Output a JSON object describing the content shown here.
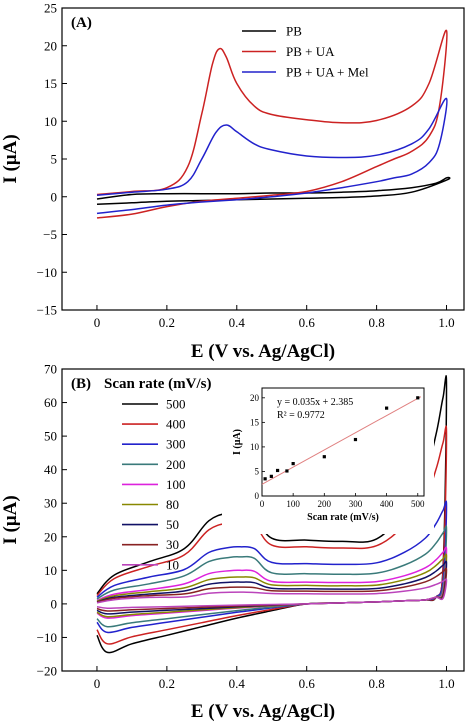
{
  "chart_data": [
    {
      "type": "line",
      "panel_label": "(A)",
      "xlabel": "E (V vs. Ag/AgCl)",
      "ylabel": "I (μA)",
      "xlim": [
        -0.1,
        1.05
      ],
      "ylim": [
        -15,
        25
      ],
      "xticks": [
        "0",
        "0.2",
        "0.4",
        "0.6",
        "0.8",
        "1.0"
      ],
      "xtick_values": [
        0,
        0.2,
        0.4,
        0.6,
        0.8,
        1.0
      ],
      "yticks": [
        "25",
        "20",
        "15",
        "10",
        "5",
        "0",
        "−5",
        "−10",
        "−15"
      ],
      "ytick_values": [
        25,
        20,
        15,
        10,
        5,
        0,
        -5,
        -10,
        -15
      ],
      "legend_position": "top-right",
      "series": [
        {
          "name": "PB",
          "color": "#000000",
          "x": [
            0,
            0.1,
            0.2,
            0.3,
            0.4,
            0.5,
            0.6,
            0.7,
            0.8,
            0.9,
            0.97,
            1.0,
            1.0,
            0.9,
            0.8,
            0.7,
            0.6,
            0.5,
            0.4,
            0.3,
            0.2,
            0.1,
            0
          ],
          "y": [
            -0.3,
            0.3,
            0.4,
            0.4,
            0.4,
            0.5,
            0.5,
            0.6,
            0.8,
            1.2,
            1.8,
            2.5,
            2.2,
            0.6,
            0.1,
            -0.1,
            -0.2,
            -0.3,
            -0.4,
            -0.5,
            -0.6,
            -0.8,
            -1.0
          ]
        },
        {
          "name": "PB + UA",
          "color": "#cc2222",
          "x": [
            0,
            0.1,
            0.2,
            0.26,
            0.3,
            0.33,
            0.35,
            0.37,
            0.4,
            0.45,
            0.5,
            0.6,
            0.7,
            0.8,
            0.9,
            0.95,
            1.0,
            0.98,
            0.95,
            0.9,
            0.85,
            0.8,
            0.7,
            0.6,
            0.5,
            0.4,
            0.3,
            0.2,
            0.1,
            0
          ],
          "y": [
            0.3,
            0.7,
            1.2,
            4,
            11,
            17.5,
            19.6,
            18.5,
            15,
            12,
            10.9,
            10.2,
            9.8,
            10.1,
            12,
            15,
            22,
            12,
            8,
            6,
            5,
            4,
            2,
            0.7,
            0.2,
            -0.2,
            -0.6,
            -1.3,
            -2.3,
            -2.8
          ]
        },
        {
          "name": "PB + UA + Mel",
          "color": "#2222cc",
          "x": [
            0,
            0.1,
            0.2,
            0.26,
            0.3,
            0.34,
            0.37,
            0.4,
            0.45,
            0.5,
            0.6,
            0.7,
            0.8,
            0.9,
            0.95,
            1.0,
            0.98,
            0.95,
            0.9,
            0.85,
            0.8,
            0.7,
            0.6,
            0.5,
            0.4,
            0.3,
            0.2,
            0.1,
            0
          ],
          "y": [
            0.2,
            0.6,
            1.0,
            2,
            5,
            8.5,
            9.5,
            8.6,
            7,
            6.2,
            5.4,
            5.2,
            5.5,
            7,
            9,
            13,
            7,
            4.5,
            3,
            2.5,
            2,
            1.2,
            0.5,
            0,
            -0.4,
            -0.7,
            -1.1,
            -1.7,
            -2.2
          ]
        }
      ]
    },
    {
      "type": "line",
      "panel_label": "(B)",
      "legend_title": "Scan rate (mV/s)",
      "xlabel": "E (V vs. Ag/AgCl)",
      "ylabel": "I (μA)",
      "xlim": [
        -0.1,
        1.05
      ],
      "ylim": [
        -20,
        70
      ],
      "xticks": [
        "0",
        "0.2",
        "0.4",
        "0.6",
        "0.8",
        "1.0"
      ],
      "xtick_values": [
        0,
        0.2,
        0.4,
        0.6,
        0.8,
        1.0
      ],
      "yticks": [
        "70",
        "60",
        "50",
        "40",
        "30",
        "20",
        "10",
        "0",
        "−10",
        "−20"
      ],
      "ytick_values": [
        70,
        60,
        50,
        40,
        30,
        20,
        10,
        0,
        -10,
        -20
      ],
      "legend_position": "top-left",
      "series": [
        {
          "name": "500",
          "color": "#000000",
          "peak": 27.5,
          "vertex": 64,
          "base": 19,
          "start": 3,
          "bottom": -17
        },
        {
          "name": "400",
          "color": "#cc2222",
          "peak": 24.5,
          "vertex": 50,
          "base": 17,
          "start": 2.5,
          "bottom": -14
        },
        {
          "name": "300",
          "color": "#2222cc",
          "peak": 17,
          "vertex": 29,
          "base": 12,
          "start": 2,
          "bottom": -10
        },
        {
          "name": "200",
          "color": "#3a7a7a",
          "peak": 14,
          "vertex": 22,
          "base": 9,
          "start": 1.5,
          "bottom": -8
        },
        {
          "name": "100",
          "color": "#dd22dd",
          "peak": 10,
          "vertex": 16,
          "base": 6.5,
          "start": 1,
          "bottom": -5
        },
        {
          "name": "80",
          "color": "#888800",
          "peak": 8,
          "vertex": 14,
          "base": 5.5,
          "start": 0.8,
          "bottom": -4.5
        },
        {
          "name": "50",
          "color": "#111166",
          "peak": 6.5,
          "vertex": 12,
          "base": 4.5,
          "start": 0.6,
          "bottom": -3.5
        },
        {
          "name": "30",
          "color": "#882222",
          "peak": 5,
          "vertex": 10,
          "base": 3.8,
          "start": 0.5,
          "bottom": -2.5
        },
        {
          "name": "10",
          "color": "#bb44bb",
          "peak": 3.5,
          "vertex": 7,
          "base": 3,
          "start": 0.3,
          "bottom": -1.5
        }
      ],
      "inset": {
        "type": "scatter",
        "xlabel": "Scan rate (mV/s)",
        "ylabel": "I (μA)",
        "xlim": [
          0,
          520
        ],
        "ylim": [
          0,
          22
        ],
        "xticks": [
          "0",
          "100",
          "200",
          "300",
          "400",
          "500"
        ],
        "xtick_values": [
          0,
          100,
          200,
          300,
          400,
          500
        ],
        "yticks": [
          "0",
          "5",
          "10",
          "15",
          "20"
        ],
        "ytick_values": [
          0,
          5,
          10,
          15,
          20
        ],
        "x": [
          10,
          30,
          50,
          80,
          100,
          200,
          300,
          400,
          500
        ],
        "y": [
          3.5,
          4.0,
          5.2,
          5.1,
          6.6,
          8.0,
          11.5,
          17.9,
          20.0
        ],
        "fit_color": "#e08080",
        "fit_slope": 0.035,
        "fit_intercept": 2.385,
        "equation": "y = 0.035x + 2.385",
        "r2": "R² = 0.9772"
      }
    }
  ]
}
